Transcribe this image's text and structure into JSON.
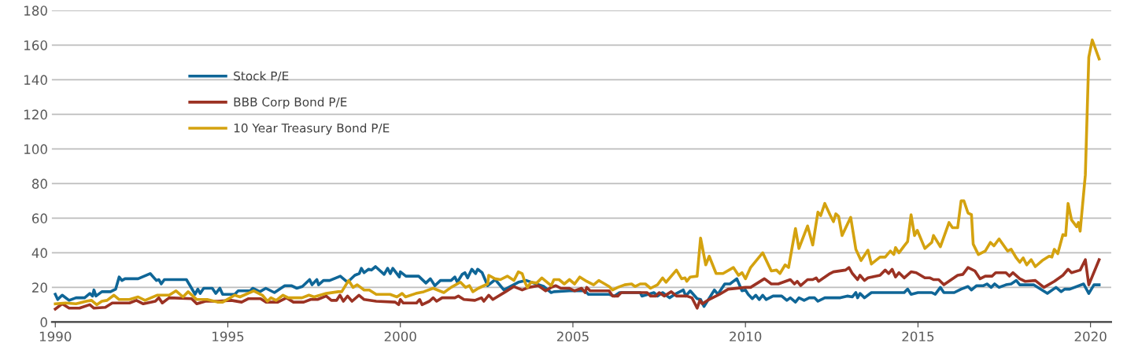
{
  "chart_data": {
    "type": "line",
    "xlim": [
      1989.9,
      2020.6
    ],
    "xticks": [
      1990,
      1995,
      2000,
      2005,
      2010,
      2015,
      2020
    ],
    "ylim": [
      0,
      180
    ],
    "yticks": [
      0,
      20,
      40,
      60,
      80,
      100,
      120,
      140,
      160,
      180
    ],
    "grid": "y",
    "legend": "top left",
    "marker": "none",
    "line_style": "solid",
    "series": [
      {
        "name": "Stock P/E",
        "color": "#0f6697",
        "x": [
          1990,
          1990.07,
          1990.2,
          1990.4,
          1990.6,
          1990.85,
          1991,
          1991.08,
          1991.12,
          1991.18,
          1991.35,
          1991.6,
          1991.75,
          1991.85,
          1991.93,
          1992.02,
          1992.4,
          1992.75,
          1992.93,
          1993.0,
          1993.07,
          1993.16,
          1993.8,
          1993.95,
          1994.05,
          1994.13,
          1994.2,
          1994.3,
          1994.55,
          1994.65,
          1994.77,
          1994.85,
          1995.2,
          1995.3,
          1995.65,
          1995.72,
          1995.93,
          1996.1,
          1996.35,
          1996.65,
          1996.84,
          1997.0,
          1997.16,
          1997.37,
          1997.44,
          1997.58,
          1997.63,
          1997.77,
          1997.95,
          1998.26,
          1998.47,
          1998.68,
          1998.81,
          1998.87,
          1998.95,
          1999.08,
          1999.16,
          1999.28,
          1999.53,
          1999.63,
          1999.71,
          1999.78,
          1999.97,
          2000.0,
          2000.16,
          2000.53,
          2000.74,
          2000.87,
          2001.0,
          2001.16,
          2001.47,
          2001.58,
          2001.65,
          2001.79,
          2001.87,
          2001.95,
          2002.07,
          2002.18,
          2002.24,
          2002.37,
          2002.53,
          2002.75,
          2003.0,
          2003.42,
          2003.65,
          2004.16,
          2004.37,
          2004.45,
          2004.9,
          2005.35,
          2005.45,
          2006.05,
          2006.2,
          2006.35,
          2006.95,
          2007.0,
          2007.35,
          2007.45,
          2007.6,
          2007.8,
          2008.0,
          2008.2,
          2008.27,
          2008.4,
          2008.6,
          2008.7,
          2008.8,
          2009.1,
          2009.2,
          2009.4,
          2009.55,
          2009.75,
          2009.9,
          2010.0,
          2010.08,
          2010.2,
          2010.3,
          2010.4,
          2010.5,
          2010.6,
          2010.8,
          2011.05,
          2011.2,
          2011.3,
          2011.45,
          2011.55,
          2011.7,
          2011.85,
          2012.0,
          2012.1,
          2012.3,
          2012.75,
          2012.95,
          2013.1,
          2013.2,
          2013.25,
          2013.32,
          2013.45,
          2013.65,
          2014.6,
          2014.7,
          2014.8,
          2015.0,
          2015.4,
          2015.5,
          2015.65,
          2015.75,
          2016.05,
          2016.25,
          2016.45,
          2016.55,
          2016.7,
          2016.9,
          2017.0,
          2017.12,
          2017.22,
          2017.35,
          2017.55,
          2017.7,
          2017.85,
          2017.95,
          2018.35,
          2018.75,
          2019.0,
          2019.15,
          2019.25,
          2019.4,
          2019.8,
          2019.95,
          2020.1,
          2020.25
        ],
        "values": [
          16,
          13,
          15.5,
          12.5,
          14,
          14,
          16.5,
          15,
          18.5,
          15,
          17.5,
          17.5,
          19,
          26,
          24,
          25,
          25,
          28,
          24,
          24.5,
          22,
          24.5,
          24.5,
          19.5,
          16,
          19,
          16.5,
          19.5,
          19.5,
          16.5,
          19.5,
          16,
          16,
          18,
          18,
          19.5,
          17.5,
          19.5,
          17,
          21,
          21,
          19.5,
          20.5,
          24.5,
          21.5,
          24.5,
          21.5,
          24,
          24,
          26.5,
          23,
          27,
          28,
          31,
          28.5,
          30.5,
          30,
          32,
          27.5,
          31,
          28,
          31,
          26,
          29,
          26.5,
          26.5,
          22.5,
          25,
          21,
          24,
          24,
          26,
          23,
          27.5,
          28.5,
          25.5,
          30.5,
          28,
          30.5,
          28.5,
          21,
          24.5,
          18.5,
          23,
          24,
          20.5,
          17,
          17.5,
          18,
          18,
          16,
          16,
          15,
          17,
          17,
          15,
          17,
          15,
          17,
          14,
          16.5,
          18.5,
          15,
          18,
          13.5,
          13,
          9,
          18.5,
          16,
          22,
          22,
          25,
          18,
          18.5,
          16,
          13.5,
          15.5,
          13,
          15.5,
          13,
          15,
          15,
          12.5,
          14,
          11.5,
          14,
          12.5,
          14,
          14,
          12,
          14,
          14,
          15,
          14.5,
          17,
          14,
          16.5,
          14,
          17,
          17,
          19,
          16,
          17,
          17,
          16,
          20,
          17,
          17,
          19,
          20.5,
          18.5,
          21,
          21,
          22,
          20,
          22,
          20,
          21.5,
          22,
          24,
          21.5,
          21.5,
          16.5,
          20,
          17.5,
          19,
          19,
          22,
          16.5,
          21.5,
          21.5
        ]
      },
      {
        "name": "BBB Corp Bond P/E",
        "color": "#9b3223",
        "x": [
          1990,
          1990.2,
          1990.4,
          1990.7,
          1991,
          1991.12,
          1991.45,
          1991.65,
          1992.15,
          1992.35,
          1992.55,
          1992.9,
          1993.0,
          1993.1,
          1993.3,
          1993.95,
          1994.1,
          1994.35,
          1994.7,
          1995.1,
          1995.4,
          1995.6,
          1995.95,
          1996.1,
          1996.45,
          1996.7,
          1996.9,
          1997.2,
          1997.4,
          1997.6,
          1997.85,
          1998.0,
          1998.15,
          1998.25,
          1998.35,
          1998.47,
          1998.6,
          1998.8,
          1998.95,
          1999.3,
          1999.85,
          1999.95,
          2000.0,
          2000.08,
          2000.47,
          2000.56,
          2000.63,
          2000.84,
          2000.95,
          2001.05,
          2001.21,
          2001.58,
          2001.68,
          2001.84,
          2002.16,
          2002.35,
          2002.42,
          2002.56,
          2002.68,
          2003.05,
          2003.29,
          2003.53,
          2003.72,
          2004.0,
          2004.21,
          2004.37,
          2004.5,
          2004.65,
          2004.9,
          2005.05,
          2005.25,
          2005.35,
          2005.4,
          2005.5,
          2006.05,
          2006.15,
          2006.3,
          2006.4,
          2007.15,
          2007.25,
          2007.4,
          2007.5,
          2007.65,
          2007.85,
          2008.0,
          2008.3,
          2008.45,
          2008.6,
          2008.68,
          2008.75,
          2008.9,
          2009.25,
          2009.5,
          2010.0,
          2010.15,
          2010.55,
          2010.75,
          2010.95,
          2011.3,
          2011.42,
          2011.5,
          2011.6,
          2011.8,
          2011.95,
          2012.05,
          2012.12,
          2012.45,
          2012.55,
          2012.9,
          2013.0,
          2013.1,
          2013.25,
          2013.32,
          2013.45,
          2013.55,
          2013.9,
          2014.05,
          2014.15,
          2014.25,
          2014.35,
          2014.45,
          2014.6,
          2014.8,
          2014.95,
          2015.2,
          2015.35,
          2015.45,
          2015.6,
          2015.75,
          2016.15,
          2016.3,
          2016.45,
          2016.65,
          2016.8,
          2016.95,
          2017.15,
          2017.25,
          2017.55,
          2017.65,
          2017.75,
          2017.95,
          2018.1,
          2018.4,
          2018.65,
          2018.95,
          2019.2,
          2019.35,
          2019.45,
          2019.7,
          2019.85,
          2019.95,
          2020.25
        ],
        "values": [
          7.5,
          10.5,
          8,
          8,
          10,
          8,
          8.5,
          11,
          11,
          12.5,
          10.5,
          12,
          14,
          11,
          14,
          13.5,
          10.5,
          12,
          12,
          12.5,
          11.5,
          13.5,
          13.5,
          11.5,
          11.5,
          14,
          11.5,
          11.5,
          13,
          13,
          15,
          12.5,
          12.5,
          15.5,
          12,
          15,
          12,
          15.5,
          13,
          12,
          11.5,
          10,
          13,
          11,
          11,
          13,
          10,
          12,
          14,
          12,
          14,
          14,
          15,
          13,
          12.5,
          14,
          12,
          15.5,
          13,
          17.5,
          20.5,
          18.5,
          20,
          21,
          18,
          20,
          21,
          19.5,
          19.5,
          18,
          19.5,
          17,
          20,
          18,
          18,
          15,
          15,
          17,
          17,
          15,
          15,
          17,
          15,
          17.5,
          15,
          15,
          14,
          8,
          12.5,
          10.5,
          12.5,
          16,
          19,
          20,
          20,
          25,
          22,
          22,
          24.5,
          22,
          23.5,
          21,
          24.5,
          24.5,
          25.5,
          23.5,
          28,
          29,
          30,
          31.5,
          28,
          24.5,
          27,
          24,
          25.5,
          27,
          30,
          28,
          30.5,
          26,
          28.5,
          25.5,
          29,
          28.5,
          25.5,
          25.5,
          24.5,
          24.5,
          21.5,
          27,
          27.5,
          31.5,
          29.5,
          25,
          26.5,
          26.5,
          28.5,
          28.5,
          26.5,
          28.5,
          25,
          23.5,
          24,
          20,
          23.5,
          27,
          30.5,
          28.5,
          30,
          36,
          21.5,
          36
        ]
      },
      {
        "name": "10 Year Treasury Bond P/E",
        "color": "#d4a20f",
        "x": [
          1990,
          1990.3,
          1990.6,
          1990.9,
          1991.05,
          1991.2,
          1991.35,
          1991.5,
          1991.7,
          1991.85,
          1992.15,
          1992.4,
          1992.6,
          1992.95,
          1993.3,
          1993.5,
          1993.7,
          1993.85,
          1994.1,
          1994.4,
          1994.7,
          1994.85,
          1995.2,
          1995.35,
          1995.75,
          1996.0,
          1996.15,
          1996.25,
          1996.4,
          1996.6,
          1996.75,
          1997.15,
          1997.35,
          1997.5,
          1997.85,
          1998.2,
          1998.3,
          1998.5,
          1998.63,
          1998.75,
          1998.95,
          1999.1,
          1999.3,
          1999.7,
          1999.9,
          2000.05,
          2000.15,
          2000.45,
          2000.68,
          2000.95,
          2001.26,
          2001.47,
          2001.74,
          2001.89,
          2002.0,
          2002.1,
          2002.26,
          2002.53,
          2002.56,
          2002.74,
          2002.9,
          2003.1,
          2003.29,
          2003.42,
          2003.53,
          2003.61,
          2003.68,
          2003.79,
          2003.95,
          2004.1,
          2004.37,
          2004.45,
          2004.6,
          2004.75,
          2004.9,
          2005.05,
          2005.2,
          2005.4,
          2005.6,
          2005.75,
          2006.05,
          2006.15,
          2006.3,
          2006.5,
          2006.7,
          2006.8,
          2006.95,
          2007.1,
          2007.25,
          2007.45,
          2007.6,
          2007.7,
          2008.0,
          2008.15,
          2008.25,
          2008.3,
          2008.4,
          2008.6,
          2008.7,
          2008.85,
          2008.95,
          2009.15,
          2009.35,
          2009.65,
          2009.8,
          2009.9,
          2010.0,
          2010.15,
          2010.5,
          2010.75,
          2010.9,
          2011.0,
          2011.15,
          2011.25,
          2011.45,
          2011.55,
          2011.8,
          2011.95,
          2012.1,
          2012.18,
          2012.3,
          2012.45,
          2012.55,
          2012.62,
          2012.7,
          2012.8,
          2013.05,
          2013.2,
          2013.35,
          2013.55,
          2013.65,
          2013.9,
          2014.05,
          2014.2,
          2014.3,
          2014.35,
          2014.45,
          2014.6,
          2014.7,
          2014.8,
          2014.9,
          2014.98,
          2015.2,
          2015.4,
          2015.45,
          2015.65,
          2015.9,
          2016.0,
          2016.15,
          2016.25,
          2016.33,
          2016.45,
          2016.55,
          2016.6,
          2016.75,
          2016.95,
          2017.1,
          2017.2,
          2017.35,
          2017.6,
          2017.7,
          2017.85,
          2017.95,
          2018.05,
          2018.15,
          2018.28,
          2018.4,
          2018.6,
          2018.8,
          2018.88,
          2018.95,
          2019.05,
          2019.2,
          2019.28,
          2019.35,
          2019.45,
          2019.6,
          2019.65,
          2019.7,
          2019.85,
          2019.95,
          2020.05,
          2020.25
        ],
        "values": [
          10.5,
          11,
          10.5,
          12,
          12.5,
          10,
          12,
          12.5,
          15.5,
          13,
          13,
          14.5,
          12.5,
          15.5,
          15.5,
          18,
          14.5,
          17.5,
          13,
          13,
          11.5,
          11.5,
          15.5,
          14.5,
          18,
          15.5,
          12,
          14,
          12.5,
          15.5,
          14,
          14,
          15.5,
          14.5,
          16.5,
          17.5,
          17.5,
          24,
          20,
          21.5,
          18.5,
          18.5,
          16,
          16,
          14.5,
          16.5,
          14.5,
          16.5,
          17.5,
          19.5,
          17,
          20,
          23,
          20,
          21,
          17.5,
          19.5,
          22,
          27,
          25,
          24.5,
          26.5,
          24,
          29,
          28,
          23,
          20,
          23,
          22.5,
          25.5,
          21,
          24.5,
          24.5,
          22,
          24.5,
          22,
          26,
          23.5,
          21.5,
          24,
          20.5,
          18.5,
          20,
          21.5,
          22,
          20.5,
          22,
          22,
          19.5,
          21.5,
          25.5,
          23,
          30,
          25,
          25.5,
          23.5,
          26,
          26.5,
          48.5,
          33,
          38,
          28,
          28,
          31.5,
          27,
          28.5,
          25,
          31.5,
          40,
          29.5,
          30,
          28,
          33,
          31.5,
          54,
          42.5,
          55.5,
          44.5,
          63.5,
          61.5,
          68.5,
          62,
          58,
          62.5,
          61,
          50,
          60.5,
          42,
          35.5,
          41.5,
          33.5,
          37.5,
          37.5,
          41,
          39,
          43,
          40,
          44,
          46.5,
          62,
          50,
          53,
          42.5,
          46,
          50,
          43.5,
          57.5,
          54.5,
          54.5,
          70,
          70,
          63,
          62,
          45,
          39,
          41,
          46,
          44,
          48,
          41,
          42,
          37,
          34.5,
          37,
          33,
          36,
          32,
          35.5,
          38,
          37.5,
          42,
          39.5,
          50.5,
          50,
          68.5,
          59,
          55,
          57.5,
          52.5,
          85,
          153,
          163,
          152
        ]
      }
    ]
  }
}
